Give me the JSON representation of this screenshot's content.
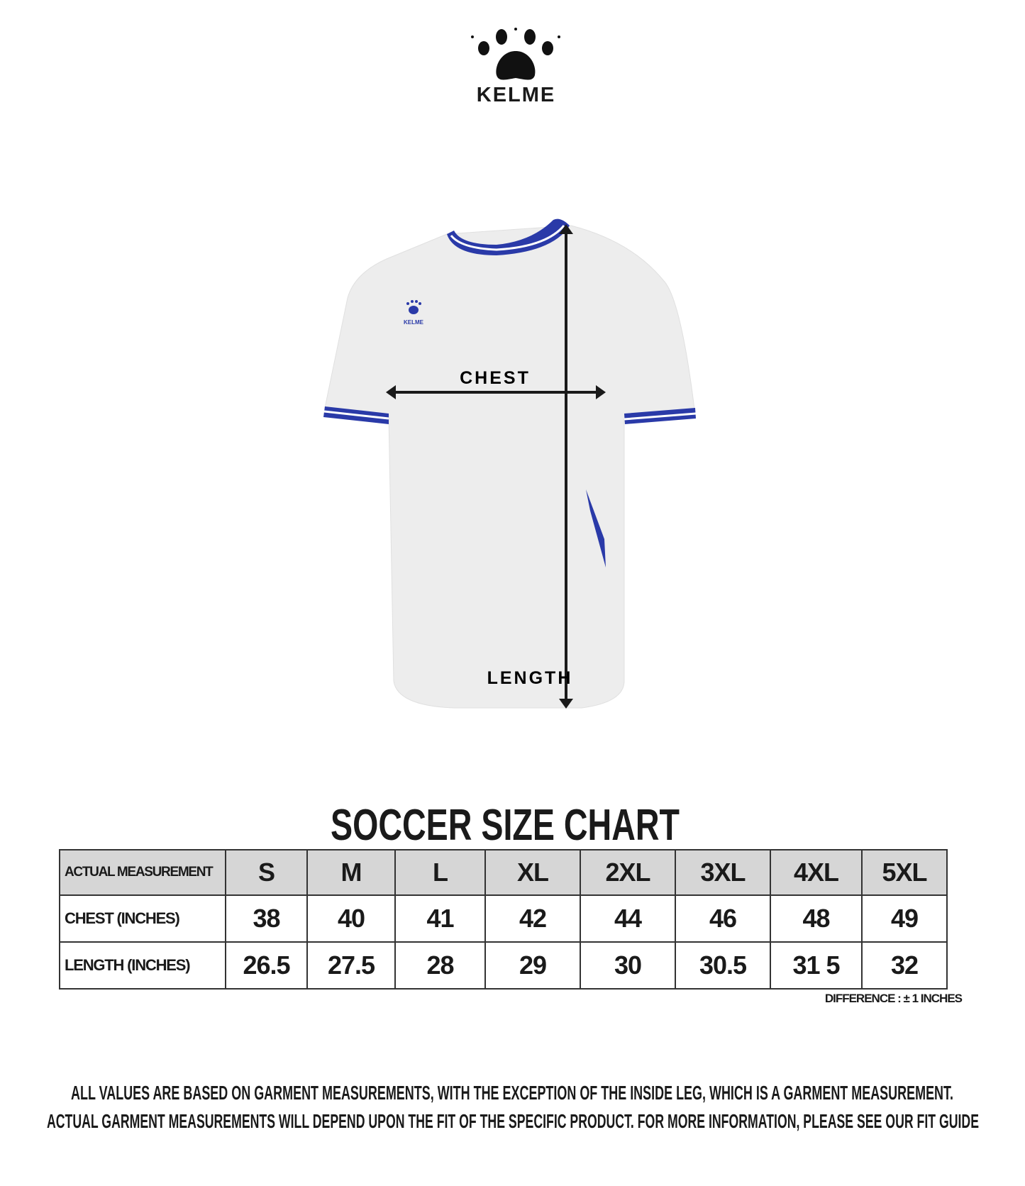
{
  "brand": {
    "name": "KELME",
    "logo_icon": "paw-icon"
  },
  "diagram": {
    "chest_label": "CHEST",
    "length_label": "LENGTH",
    "accent_color": "#2a3aa8"
  },
  "chart": {
    "title": "SOCCER SIZE CHART",
    "header_label": "ACTUAL MEASUREMENT",
    "sizes": [
      "S",
      "M",
      "L",
      "XL",
      "2XL",
      "3XL",
      "4XL",
      "5XL"
    ],
    "rows": [
      {
        "label": "CHEST (INCHES)",
        "values": [
          "38",
          "40",
          "41",
          "42",
          "44",
          "46",
          "48",
          "49"
        ]
      },
      {
        "label": "LENGTH (INCHES)",
        "values": [
          "26.5",
          "27.5",
          "28",
          "29",
          "30",
          "30.5",
          "31 5",
          "32"
        ]
      }
    ],
    "difference_note": "DIFFERENCE : ± 1 INCHES"
  },
  "footer": {
    "line1": "ALL VALUES ARE BASED ON GARMENT MEASUREMENTS, WITH THE EXCEPTION OF THE INSIDE LEG, WHICH IS A GARMENT MEASUREMENT.",
    "line2": "ACTUAL GARMENT MEASUREMENTS WILL DEPEND UPON THE FIT OF THE SPECIFIC PRODUCT. FOR MORE INFORMATION, PLEASE SEE OUR FIT GUIDE"
  }
}
